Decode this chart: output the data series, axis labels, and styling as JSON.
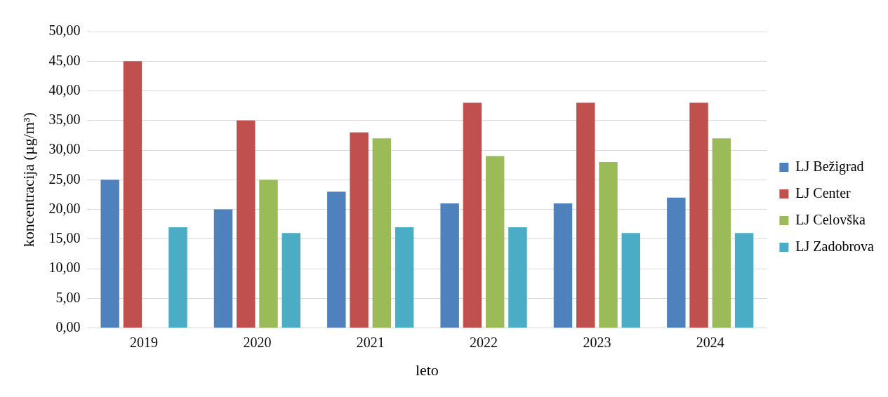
{
  "chart_data": {
    "type": "bar",
    "xlabel": "leto",
    "ylabel": "koncentracija (µg/m³)",
    "categories": [
      "2019",
      "2020",
      "2021",
      "2022",
      "2023",
      "2024"
    ],
    "series": [
      {
        "name": "LJ Bežigrad",
        "color": "#4f81bd",
        "values": [
          25,
          20,
          23,
          21,
          21,
          22
        ]
      },
      {
        "name": "LJ Center",
        "color": "#c0504d",
        "values": [
          45,
          35,
          33,
          38,
          38,
          38
        ]
      },
      {
        "name": "LJ Celovška",
        "color": "#9bbb59",
        "values": [
          null,
          25,
          32,
          29,
          28,
          32
        ]
      },
      {
        "name": "LJ Zadobrova",
        "color": "#4bacc6",
        "values": [
          17,
          16,
          17,
          17,
          16,
          16
        ]
      }
    ],
    "ylim": [
      0,
      50
    ],
    "yticks": [
      {
        "value": 0,
        "label": "0,00"
      },
      {
        "value": 5,
        "label": "5,00"
      },
      {
        "value": 10,
        "label": "10,00"
      },
      {
        "value": 15,
        "label": "15,00"
      },
      {
        "value": 20,
        "label": "20,00"
      },
      {
        "value": 25,
        "label": "25,00"
      },
      {
        "value": 30,
        "label": "30,00"
      },
      {
        "value": 35,
        "label": "35,00"
      },
      {
        "value": 40,
        "label": "40,00"
      },
      {
        "value": 45,
        "label": "45,00"
      },
      {
        "value": 50,
        "label": "50,00"
      }
    ],
    "grid": "y",
    "legend": "right"
  }
}
